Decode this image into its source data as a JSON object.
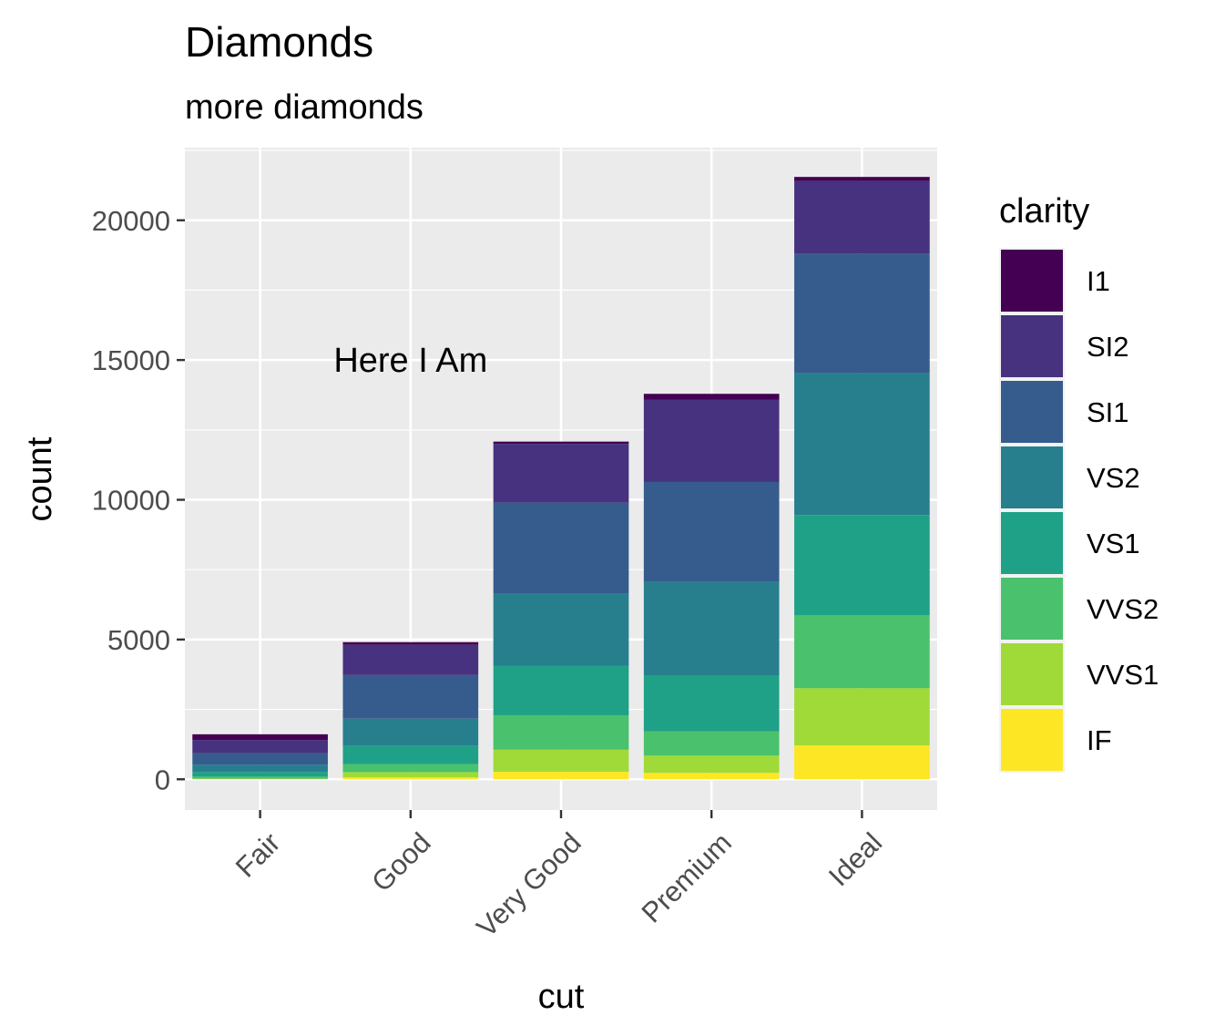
{
  "chart_data": {
    "type": "bar",
    "stacked": true,
    "title": "Diamonds",
    "subtitle": "more diamonds",
    "xlabel": "cut",
    "ylabel": "count",
    "categories": [
      "Fair",
      "Good",
      "Very Good",
      "Premium",
      "Ideal"
    ],
    "ylim": [
      -1100,
      22600
    ],
    "yticks": [
      0,
      5000,
      10000,
      15000,
      20000
    ],
    "ytick_labels": [
      "0",
      "5000",
      "10000",
      "15000",
      "20000"
    ],
    "grid": true,
    "legend": {
      "title": "clarity",
      "position": "right"
    },
    "annotation": {
      "text": "Here I Am",
      "x": "Good",
      "y": 15000
    },
    "series": [
      {
        "name": "IF",
        "color": "#fde725",
        "values": [
          9,
          71,
          268,
          230,
          1212
        ]
      },
      {
        "name": "VVS1",
        "color": "#a0da39",
        "values": [
          17,
          186,
          789,
          616,
          2047
        ]
      },
      {
        "name": "VVS2",
        "color": "#4ac16d",
        "values": [
          69,
          286,
          1235,
          870,
          2606
        ]
      },
      {
        "name": "VS1",
        "color": "#1fa187",
        "values": [
          170,
          648,
          1775,
          1989,
          3589
        ]
      },
      {
        "name": "VS2",
        "color": "#277f8e",
        "values": [
          261,
          978,
          2591,
          3357,
          5071
        ]
      },
      {
        "name": "SI1",
        "color": "#365c8d",
        "values": [
          408,
          1560,
          3240,
          3575,
          4282
        ]
      },
      {
        "name": "SI2",
        "color": "#46327e",
        "values": [
          466,
          1081,
          2100,
          2949,
          2598
        ]
      },
      {
        "name": "I1",
        "color": "#440154",
        "values": [
          210,
          96,
          84,
          205,
          146
        ]
      }
    ]
  }
}
